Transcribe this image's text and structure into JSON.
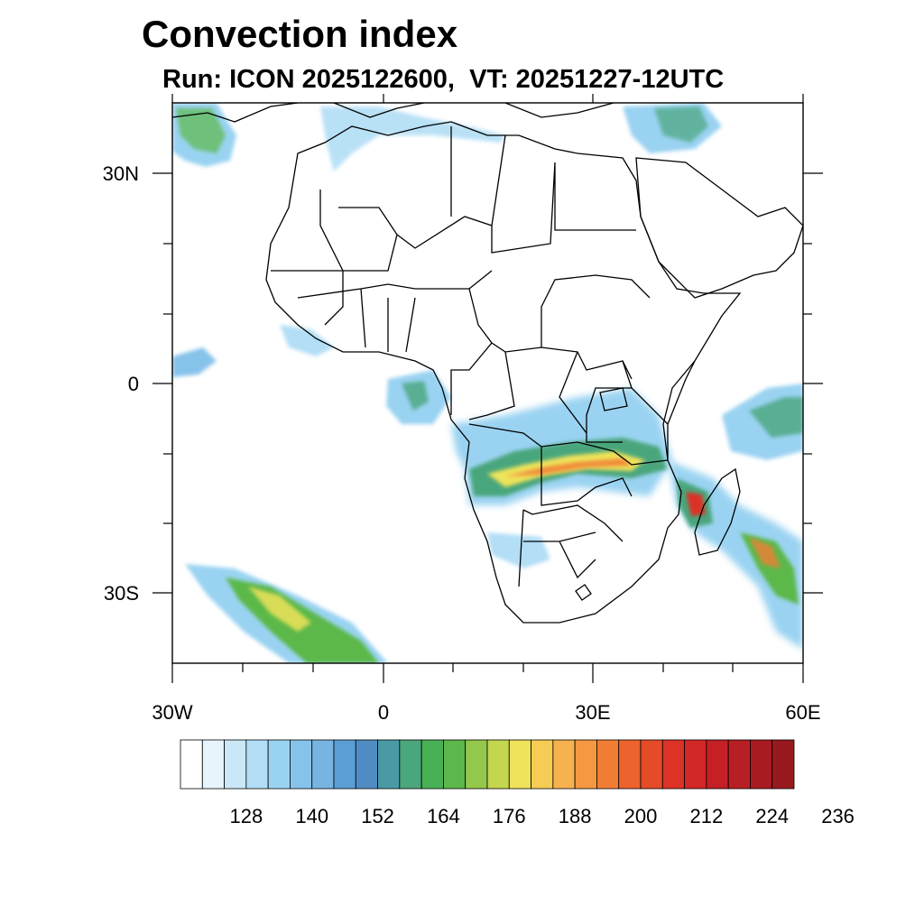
{
  "title": "Convection index",
  "subtitle": "Run: ICON 2025122600,  VT: 20251227-12UTC",
  "map": {
    "projection": "cylindrical-equidistant",
    "lon_range": [
      -30,
      60
    ],
    "lat_range": [
      -40,
      40
    ],
    "lat_labels": [
      "30N",
      "0",
      "30S"
    ],
    "lon_labels": [
      "30W",
      "0",
      "30E",
      "60E"
    ],
    "features": [
      "coastlines",
      "country-borders"
    ]
  },
  "colorbar": {
    "labels": [
      "128",
      "140",
      "152",
      "164",
      "176",
      "188",
      "200",
      "212",
      "224",
      "236"
    ],
    "colors": [
      "#ffffff",
      "#e8f4fc",
      "#cbe8f8",
      "#b2def6",
      "#9ad3f2",
      "#86c3ea",
      "#78b4e2",
      "#5b9ed4",
      "#4f8cc4",
      "#4a9aa6",
      "#4aa67c",
      "#48b055",
      "#5cb84a",
      "#94c84c",
      "#c4d650",
      "#eee35a",
      "#f5cd55",
      "#f6b24f",
      "#f59841",
      "#f27e35",
      "#ec632d",
      "#e44b29",
      "#dc3327",
      "#d42727",
      "#c42026",
      "#b81f25",
      "#a81b22",
      "#981a1f"
    ]
  }
}
